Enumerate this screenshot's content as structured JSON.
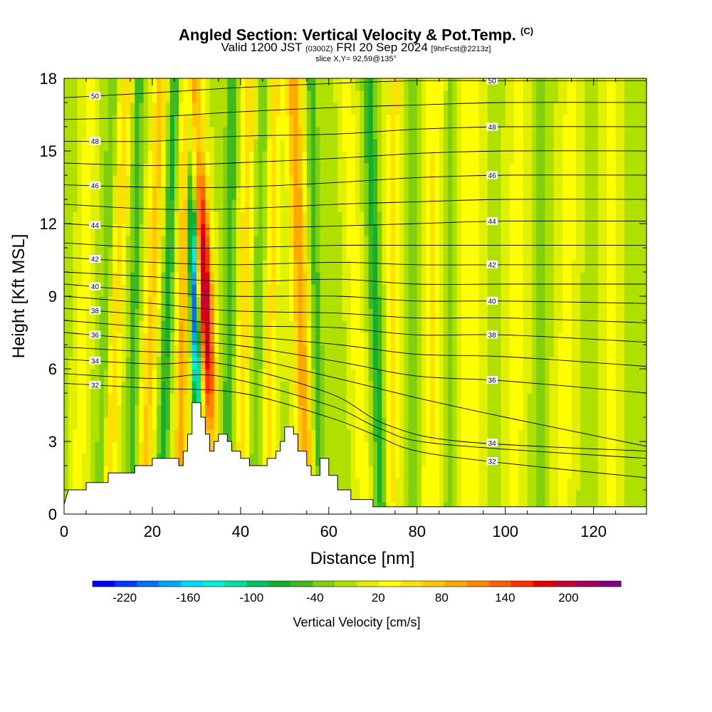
{
  "header": {
    "title": "Angled Section: Vertical Velocity & Pot.Temp.",
    "title_mark": "(C)",
    "valid_prefix": "Valid 1200 JST",
    "valid_zulu": "(0300Z)",
    "valid_date": "FRI 20 Sep 2024",
    "valid_fcst": "[9hrFcst@2213z]",
    "slice": "slice X,Y= 92,59@135°"
  },
  "chart_data": {
    "type": "heatmap",
    "xlabel": "Distance [nm]",
    "ylabel": "Height [Kft MSL]",
    "xlim": [
      0,
      132
    ],
    "ylim": [
      0,
      18
    ],
    "x_ticks": [
      0,
      20,
      40,
      60,
      80,
      100,
      120
    ],
    "y_ticks": [
      0,
      3,
      6,
      9,
      12,
      15,
      18
    ],
    "colorbar": {
      "title": "Vertical Velocity [cm/s]",
      "range": [
        -240,
        260
      ],
      "tick_values": [
        -220,
        -160,
        -100,
        -40,
        20,
        80,
        140,
        200
      ],
      "tick_labels": [
        "-220",
        "-160",
        "-100",
        "-40",
        "20",
        "80",
        "140",
        "200"
      ],
      "colors": [
        "#0000ff",
        "#0038ff",
        "#0070ff",
        "#00a8ff",
        "#00d8ff",
        "#00f0e0",
        "#00e0a0",
        "#00c060",
        "#10b030",
        "#40b820",
        "#80d010",
        "#b0e000",
        "#e0f000",
        "#ffff00",
        "#ffe000",
        "#ffc800",
        "#ffa800",
        "#ff8800",
        "#ff6000",
        "#ff3000",
        "#e80000",
        "#c80030",
        "#a00060",
        "#800080"
      ]
    },
    "terrain_profile": [
      [
        0,
        0.4
      ],
      [
        1,
        1.0
      ],
      [
        5,
        1.0
      ],
      [
        5,
        1.3
      ],
      [
        10,
        1.3
      ],
      [
        10,
        1.7
      ],
      [
        16,
        1.7
      ],
      [
        16,
        2.0
      ],
      [
        20,
        2.0
      ],
      [
        20,
        2.3
      ],
      [
        26,
        2.3
      ],
      [
        26,
        2.0
      ],
      [
        27,
        2.0
      ],
      [
        27,
        2.6
      ],
      [
        28,
        2.6
      ],
      [
        28,
        3.3
      ],
      [
        29,
        3.3
      ],
      [
        29,
        4.6
      ],
      [
        31,
        4.6
      ],
      [
        31,
        4.0
      ],
      [
        32,
        4.0
      ],
      [
        32,
        3.3
      ],
      [
        33,
        3.3
      ],
      [
        33,
        2.6
      ],
      [
        34,
        2.6
      ],
      [
        34,
        3.0
      ],
      [
        35,
        3.0
      ],
      [
        35,
        3.3
      ],
      [
        37,
        3.3
      ],
      [
        37,
        3.0
      ],
      [
        38,
        3.0
      ],
      [
        38,
        2.6
      ],
      [
        40,
        2.6
      ],
      [
        40,
        2.3
      ],
      [
        42,
        2.3
      ],
      [
        42,
        2.0
      ],
      [
        46,
        2.0
      ],
      [
        46,
        2.3
      ],
      [
        48,
        2.3
      ],
      [
        48,
        2.6
      ],
      [
        49,
        2.6
      ],
      [
        49,
        3.0
      ],
      [
        50,
        3.0
      ],
      [
        50,
        3.6
      ],
      [
        52,
        3.6
      ],
      [
        52,
        3.3
      ],
      [
        53,
        3.3
      ],
      [
        53,
        2.6
      ],
      [
        55,
        2.6
      ],
      [
        55,
        2.0
      ],
      [
        56,
        2.0
      ],
      [
        56,
        1.6
      ],
      [
        58,
        1.6
      ],
      [
        58,
        2.3
      ],
      [
        60,
        2.3
      ],
      [
        60,
        1.6
      ],
      [
        62,
        1.6
      ],
      [
        62,
        1.0
      ],
      [
        65,
        1.0
      ],
      [
        65,
        0.6
      ],
      [
        70,
        0.6
      ],
      [
        70,
        0.3
      ],
      [
        132,
        0.3
      ]
    ],
    "updraft_bands": [
      {
        "x": 3,
        "x_top": 6,
        "w": 1.5,
        "amp": 40
      },
      {
        "x": 10,
        "x_top": 14,
        "w": 1.5,
        "amp": 60
      },
      {
        "x": 18,
        "x_top": 22,
        "w": 1.8,
        "amp": 70
      },
      {
        "x": 26,
        "x_top": 28,
        "w": 1.6,
        "amp": 90
      },
      {
        "x": 34,
        "x_top": 30,
        "w": 1.6,
        "amp": 220
      },
      {
        "x": 40,
        "x_top": 42,
        "w": 1.6,
        "amp": 60
      },
      {
        "x": 46,
        "x_top": 48,
        "w": 1.6,
        "amp": 50
      },
      {
        "x": 55,
        "x_top": 52,
        "w": 1.8,
        "amp": 100
      },
      {
        "x": 68,
        "x_top": 64,
        "w": 1.6,
        "amp": 40
      },
      {
        "x": 74,
        "x_top": 75,
        "w": 1.6,
        "amp": 50
      },
      {
        "x": 83,
        "x_top": 84,
        "w": 2.0,
        "amp": 45
      },
      {
        "x": 92,
        "x_top": 92,
        "w": 2.2,
        "amp": 45
      },
      {
        "x": 102,
        "x_top": 103,
        "w": 2.0,
        "amp": 35
      },
      {
        "x": 113,
        "x_top": 115,
        "w": 2.0,
        "amp": 35
      },
      {
        "x": 124,
        "x_top": 124,
        "w": 2.0,
        "amp": 30
      }
    ],
    "downdraft_bands": [
      {
        "x": 8,
        "x_top": 11,
        "w": 1.2,
        "amp": -40
      },
      {
        "x": 15,
        "x_top": 17,
        "w": 1.3,
        "amp": -50
      },
      {
        "x": 22,
        "x_top": 25,
        "w": 1.3,
        "amp": -70
      },
      {
        "x": 31,
        "x_top": 28,
        "w": 1.0,
        "amp": -220
      },
      {
        "x": 37,
        "x_top": 38,
        "w": 1.3,
        "amp": -60
      },
      {
        "x": 43,
        "x_top": 45,
        "w": 1.3,
        "amp": -40
      },
      {
        "x": 58,
        "x_top": 56,
        "w": 1.3,
        "amp": -50
      },
      {
        "x": 72,
        "x_top": 69,
        "w": 1.4,
        "amp": -70
      },
      {
        "x": 79,
        "x_top": 79,
        "w": 1.3,
        "amp": -30
      },
      {
        "x": 87,
        "x_top": 88,
        "w": 1.3,
        "amp": -25
      },
      {
        "x": 108,
        "x_top": 108,
        "w": 1.3,
        "amp": -25
      }
    ],
    "theta_contours": [
      {
        "value": 32,
        "label": "32",
        "pts": [
          [
            0,
            5.4
          ],
          [
            20,
            5.2
          ],
          [
            40,
            5.0
          ],
          [
            60,
            4.0
          ],
          [
            70,
            3.3
          ],
          [
            80,
            2.6
          ],
          [
            100,
            2.1
          ],
          [
            132,
            1.5
          ]
        ]
      },
      {
        "value": 33,
        "label": "",
        "pts": [
          [
            0,
            5.8
          ],
          [
            20,
            5.6
          ],
          [
            35,
            5.7
          ],
          [
            60,
            4.5
          ],
          [
            72,
            3.5
          ],
          [
            85,
            2.9
          ],
          [
            132,
            2.3
          ]
        ]
      },
      {
        "value": 34,
        "label": "34",
        "pts": [
          [
            0,
            6.4
          ],
          [
            20,
            6.2
          ],
          [
            36,
            6.2
          ],
          [
            60,
            5.0
          ],
          [
            73,
            3.7
          ],
          [
            90,
            3.0
          ],
          [
            132,
            2.6
          ]
        ]
      },
      {
        "value": 35,
        "label": "",
        "pts": [
          [
            0,
            6.9
          ],
          [
            20,
            6.7
          ],
          [
            37,
            6.6
          ],
          [
            62,
            5.6
          ],
          [
            80,
            4.8
          ],
          [
            100,
            4.0
          ],
          [
            132,
            2.8
          ]
        ]
      },
      {
        "value": 36,
        "label": "36",
        "pts": [
          [
            0,
            7.5
          ],
          [
            20,
            7.2
          ],
          [
            38,
            7.0
          ],
          [
            62,
            6.3
          ],
          [
            80,
            5.7
          ],
          [
            100,
            5.5
          ],
          [
            132,
            5.0
          ]
        ]
      },
      {
        "value": 37,
        "label": "",
        "pts": [
          [
            0,
            8.0
          ],
          [
            20,
            7.7
          ],
          [
            38,
            7.4
          ],
          [
            62,
            7.0
          ],
          [
            80,
            6.6
          ],
          [
            100,
            6.5
          ],
          [
            132,
            6.1
          ]
        ]
      },
      {
        "value": 38,
        "label": "38",
        "pts": [
          [
            0,
            8.5
          ],
          [
            20,
            8.2
          ],
          [
            38,
            7.8
          ],
          [
            62,
            7.7
          ],
          [
            80,
            7.4
          ],
          [
            100,
            7.4
          ],
          [
            132,
            7.1
          ]
        ]
      },
      {
        "value": 39,
        "label": "",
        "pts": [
          [
            0,
            9.0
          ],
          [
            20,
            8.7
          ],
          [
            38,
            8.4
          ],
          [
            62,
            8.3
          ],
          [
            80,
            8.1
          ],
          [
            100,
            8.1
          ],
          [
            132,
            7.9
          ]
        ]
      },
      {
        "value": 40,
        "label": "40",
        "pts": [
          [
            0,
            9.5
          ],
          [
            20,
            9.2
          ],
          [
            38,
            9.0
          ],
          [
            62,
            9.0
          ],
          [
            80,
            8.8
          ],
          [
            100,
            8.8
          ],
          [
            132,
            8.7
          ]
        ]
      },
      {
        "value": 41,
        "label": "",
        "pts": [
          [
            0,
            10.0
          ],
          [
            20,
            9.8
          ],
          [
            38,
            9.6
          ],
          [
            62,
            9.7
          ],
          [
            80,
            9.5
          ],
          [
            100,
            9.5
          ],
          [
            132,
            9.5
          ]
        ]
      },
      {
        "value": 42,
        "label": "42",
        "pts": [
          [
            0,
            10.6
          ],
          [
            20,
            10.4
          ],
          [
            38,
            10.3
          ],
          [
            62,
            10.4
          ],
          [
            80,
            10.3
          ],
          [
            100,
            10.3
          ],
          [
            132,
            10.3
          ]
        ]
      },
      {
        "value": 43,
        "label": "",
        "pts": [
          [
            0,
            11.2
          ],
          [
            20,
            11.0
          ],
          [
            38,
            11.0
          ],
          [
            62,
            11.1
          ],
          [
            80,
            11.1
          ],
          [
            100,
            11.1
          ],
          [
            132,
            11.1
          ]
        ]
      },
      {
        "value": 44,
        "label": "44",
        "pts": [
          [
            0,
            12.0
          ],
          [
            20,
            11.8
          ],
          [
            38,
            11.8
          ],
          [
            62,
            11.9
          ],
          [
            80,
            12.0
          ],
          [
            100,
            12.1
          ],
          [
            132,
            12.1
          ]
        ]
      },
      {
        "value": 45,
        "label": "",
        "pts": [
          [
            0,
            12.8
          ],
          [
            20,
            12.6
          ],
          [
            38,
            12.6
          ],
          [
            62,
            12.8
          ],
          [
            80,
            12.9
          ],
          [
            100,
            13.0
          ],
          [
            132,
            13.0
          ]
        ]
      },
      {
        "value": 46,
        "label": "46",
        "pts": [
          [
            0,
            13.6
          ],
          [
            20,
            13.5
          ],
          [
            38,
            13.5
          ],
          [
            62,
            13.7
          ],
          [
            80,
            13.9
          ],
          [
            100,
            14.0
          ],
          [
            132,
            14.0
          ]
        ]
      },
      {
        "value": 47,
        "label": "",
        "pts": [
          [
            0,
            14.5
          ],
          [
            20,
            14.4
          ],
          [
            38,
            14.5
          ],
          [
            62,
            14.7
          ],
          [
            80,
            14.9
          ],
          [
            100,
            15.0
          ],
          [
            132,
            15.0
          ]
        ]
      },
      {
        "value": 48,
        "label": "48",
        "pts": [
          [
            0,
            15.4
          ],
          [
            20,
            15.4
          ],
          [
            38,
            15.6
          ],
          [
            62,
            15.7
          ],
          [
            80,
            15.9
          ],
          [
            100,
            16.0
          ],
          [
            132,
            16.0
          ]
        ]
      },
      {
        "value": 49,
        "label": "",
        "pts": [
          [
            0,
            16.3
          ],
          [
            20,
            16.4
          ],
          [
            38,
            16.6
          ],
          [
            62,
            16.8
          ],
          [
            80,
            16.9
          ],
          [
            100,
            17.0
          ],
          [
            132,
            17.0
          ]
        ]
      },
      {
        "value": 50,
        "label": "50",
        "pts": [
          [
            0,
            17.2
          ],
          [
            20,
            17.4
          ],
          [
            38,
            17.6
          ],
          [
            62,
            17.8
          ],
          [
            80,
            17.9
          ],
          [
            100,
            17.9
          ],
          [
            132,
            17.9
          ]
        ]
      }
    ]
  }
}
